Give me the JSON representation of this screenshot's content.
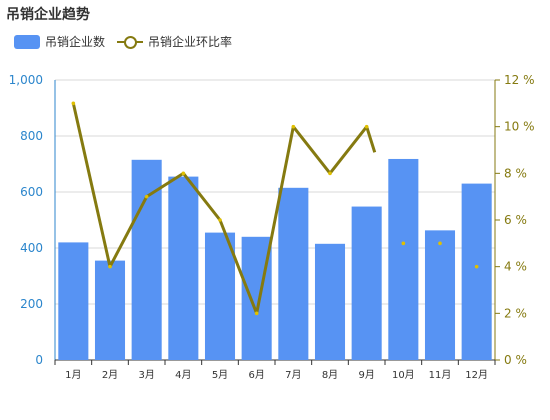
{
  "title": "吊销企业趋势",
  "colors": {
    "bar": "#5793f3",
    "line": "#857a10",
    "left_axis": "#2c86cc",
    "grid": "#d9d9d9"
  },
  "chart_data": {
    "type": "bar",
    "categories": [
      "1月",
      "2月",
      "3月",
      "4月",
      "5月",
      "6月",
      "7月",
      "8月",
      "9月",
      "10月",
      "11月",
      "12月"
    ],
    "series": [
      {
        "name": "吊销企业数",
        "type": "bar",
        "axis": "left",
        "values": [
          420,
          355,
          715,
          655,
          455,
          440,
          615,
          415,
          548,
          718,
          463,
          630
        ]
      },
      {
        "name": "吊销企业环比率",
        "type": "line",
        "axis": "right",
        "unit": "%",
        "values": [
          11,
          4,
          7,
          8,
          6,
          2,
          10,
          8,
          10,
          5,
          5,
          4
        ]
      }
    ],
    "y_left": {
      "min": 0,
      "max": 1000,
      "ticks": [
        "0",
        "200",
        "400",
        "600",
        "800",
        "1,000"
      ]
    },
    "y_right": {
      "min": 0,
      "max": 12,
      "ticks": [
        "0 %",
        "2 %",
        "4 %",
        "6 %",
        "8 %",
        "10 %",
        "12 %"
      ]
    },
    "grid": true,
    "legend_position": "top-left"
  }
}
